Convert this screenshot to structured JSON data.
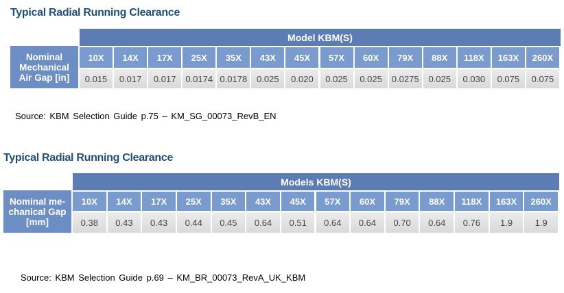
{
  "tables": [
    {
      "title": "Typical Radial Running Clearance",
      "header": "Model KBM(S)",
      "row_label": [
        "Nominal",
        "Mechanical",
        "Air Gap [in]"
      ],
      "models": [
        "10X",
        "14X",
        "17X",
        "25X",
        "35X",
        "43X",
        "45X",
        "57X",
        "60X",
        "79X",
        "88X",
        "118X",
        "163X",
        "260X"
      ],
      "values": [
        "0.015",
        "0.017",
        "0.017",
        "0.0174",
        "0.0178",
        "0.025",
        "0.020",
        "0.025",
        "0.025",
        "0.0275",
        "0.025",
        "0.030",
        "0.075",
        "0.075"
      ],
      "source": "Source: KBM Selection Guide p.75 – KM_SG_00073_RevB_EN"
    },
    {
      "title": "Typical Radial Running Clearance",
      "header": "Models KBM(S)",
      "row_label": [
        "Nominal me-",
        "chanical Gap",
        "[mm]"
      ],
      "models": [
        "10X",
        "14X",
        "17X",
        "25X",
        "35X",
        "43X",
        "45X",
        "57X",
        "60X",
        "79X",
        "88X",
        "118X",
        "163X",
        "260X"
      ],
      "values": [
        "0.38",
        "0.43",
        "0.43",
        "0.44",
        "0.45",
        "0.64",
        "0.51",
        "0.64",
        "0.64",
        "0.70",
        "0.64",
        "0.76",
        "1.9",
        "1.9"
      ],
      "source": "Source: KBM Selection Guide p.69 – KM_BR_00073_RevA_UK_KBM"
    }
  ]
}
